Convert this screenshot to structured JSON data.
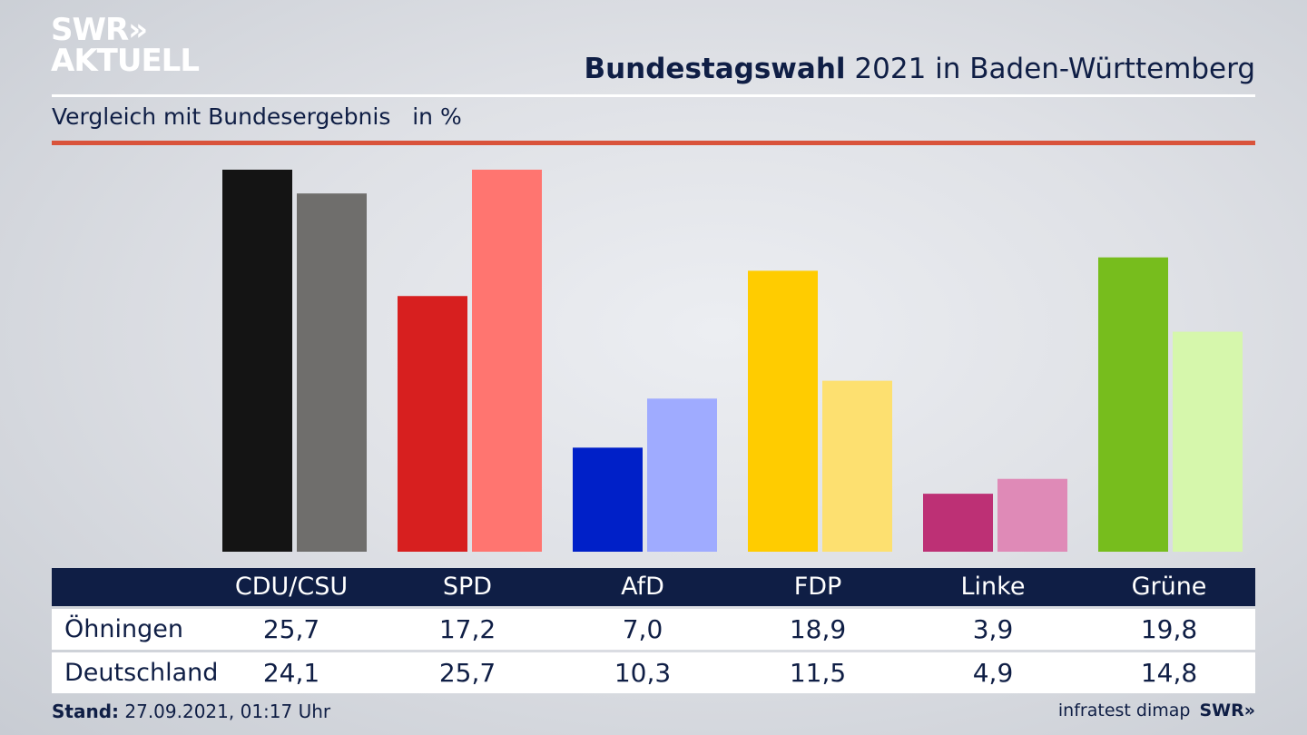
{
  "logo": {
    "line1": "SWR»",
    "line2": "AKTUELL"
  },
  "header": {
    "title_bold": "Bundestagswahl",
    "title_rest": " 2021 in Baden-Württemberg",
    "subtitle": "Vergleich mit Bundesergebnis   in %"
  },
  "chart_data": {
    "type": "bar",
    "title": "Bundestagswahl 2021 in Baden-Württemberg",
    "subtitle": "Vergleich mit Bundesergebnis in %",
    "categories": [
      "CDU/CSU",
      "SPD",
      "AfD",
      "FDP",
      "Linke",
      "Grüne"
    ],
    "series": [
      {
        "name": "Öhningen",
        "values": [
          25.7,
          17.2,
          7.0,
          18.9,
          3.9,
          19.8
        ],
        "labels": [
          "25,7",
          "17,2",
          "7,0",
          "18,9",
          "3,9",
          "19,8"
        ],
        "colors": [
          "#141414",
          "#d71f1f",
          "#0020c8",
          "#ffcc00",
          "#bd3075",
          "#77bd1d"
        ]
      },
      {
        "name": "Deutschland",
        "values": [
          24.1,
          25.7,
          10.3,
          11.5,
          4.9,
          14.8
        ],
        "labels": [
          "24,1",
          "25,7",
          "10,3",
          "11,5",
          "4,9",
          "14,8"
        ],
        "colors": [
          "#6f6e6c",
          "#ff7570",
          "#9fabff",
          "#fde070",
          "#df8ab7",
          "#d6f7ac"
        ]
      }
    ],
    "ylim": [
      0,
      25.7
    ],
    "grid": false
  },
  "footer": {
    "stand_label": "Stand:",
    "stand_value": " 27.09.2021, 01:17 Uhr",
    "source": "infratest dimap",
    "source_logo": "SWR»"
  }
}
